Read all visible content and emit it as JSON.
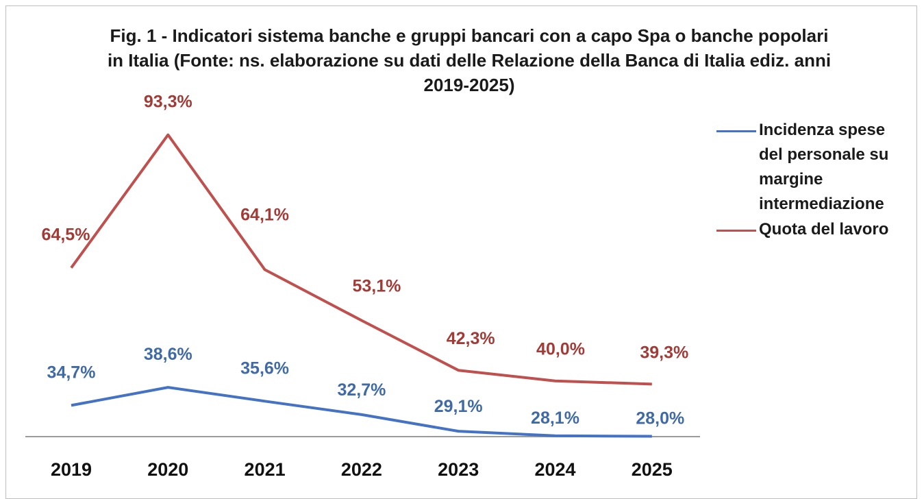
{
  "chart_data": {
    "type": "line",
    "title": "Fig. 1 - Indicatori sistema banche e gruppi bancari con a capo Spa o banche popolari in Italia (Fonte: ns. elaborazione su dati delle Relazione della Banca di Italia ediz. anni 2019-2025)",
    "categories": [
      "2019",
      "2020",
      "2021",
      "2022",
      "2023",
      "2024",
      "2025"
    ],
    "series": [
      {
        "name": "Incidenza spese del personale su margine intermediazione",
        "color": "#4472C4",
        "values": [
          34.7,
          38.6,
          35.6,
          32.7,
          29.1,
          28.1,
          28.0
        ],
        "labels": [
          "34,7%",
          "38,6%",
          "35,6%",
          "32,7%",
          "29,1%",
          "28,1%",
          "28,0%"
        ]
      },
      {
        "name": "Quota del lavoro",
        "color": "#C0504D",
        "values": [
          64.5,
          93.3,
          64.1,
          53.1,
          42.3,
          40.0,
          39.3
        ],
        "labels": [
          "64,5%",
          "93,3%",
          "64,1%",
          "53,1%",
          "42,3%",
          "40,0%",
          "39,3%"
        ]
      }
    ],
    "xlabel": "",
    "ylabel": "",
    "ylim": [
      20,
      100
    ],
    "legend_position": "right",
    "grid": false
  }
}
